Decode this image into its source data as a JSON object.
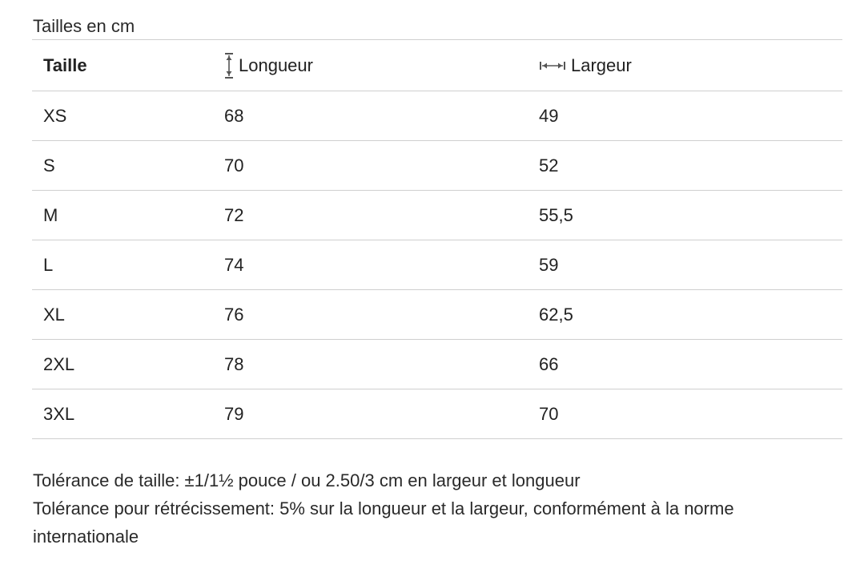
{
  "caption": "Tailles en cm",
  "table": {
    "headers": {
      "size": "Taille",
      "length": "Longueur",
      "width": "Largeur"
    },
    "header_icons": {
      "length": "vertical-measure-icon",
      "width": "horizontal-measure-icon"
    },
    "rows": [
      {
        "size": "XS",
        "length": "68",
        "width": "49"
      },
      {
        "size": "S",
        "length": "70",
        "width": "52"
      },
      {
        "size": "M",
        "length": "72",
        "width": "55,5"
      },
      {
        "size": "L",
        "length": "74",
        "width": "59"
      },
      {
        "size": "XL",
        "length": "76",
        "width": "62,5"
      },
      {
        "size": "2XL",
        "length": "78",
        "width": "66"
      },
      {
        "size": "3XL",
        "length": "79",
        "width": "70"
      }
    ]
  },
  "notes": {
    "tolerance": "Tolérance de taille: ±1/1½ pouce / ou 2.50/3 cm en largeur et longueur",
    "shrinkage": "Tolérance pour rétrécissement: 5% sur la longueur et la largeur, conformément à la norme internationale"
  }
}
